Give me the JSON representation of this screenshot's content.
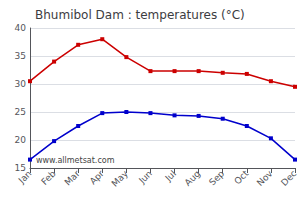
{
  "chart_data": {
    "type": "line",
    "title": "Bhumibol Dam : temperatures (°C)",
    "categories": [
      "Jan",
      "Feb",
      "Mar",
      "Apr",
      "May",
      "Jun",
      "Jul",
      "Aug",
      "Sep",
      "Oct",
      "Nov",
      "Dec"
    ],
    "series": [
      {
        "color": "#cc0000",
        "marker": "square",
        "values": [
          30.5,
          34.0,
          37.0,
          38.0,
          34.8,
          32.3,
          32.3,
          32.3,
          32.0,
          31.8,
          30.5,
          29.5
        ]
      },
      {
        "color": "#0000cc",
        "marker": "square",
        "values": [
          16.5,
          19.8,
          22.5,
          24.8,
          25.0,
          24.8,
          24.4,
          24.3,
          23.8,
          22.5,
          20.3,
          16.5
        ]
      }
    ],
    "ylim": [
      15,
      40
    ],
    "yticks": [
      15,
      20,
      25,
      30,
      35,
      40
    ],
    "grid": true,
    "annotations": [
      "www.allmetsat.com"
    ]
  }
}
